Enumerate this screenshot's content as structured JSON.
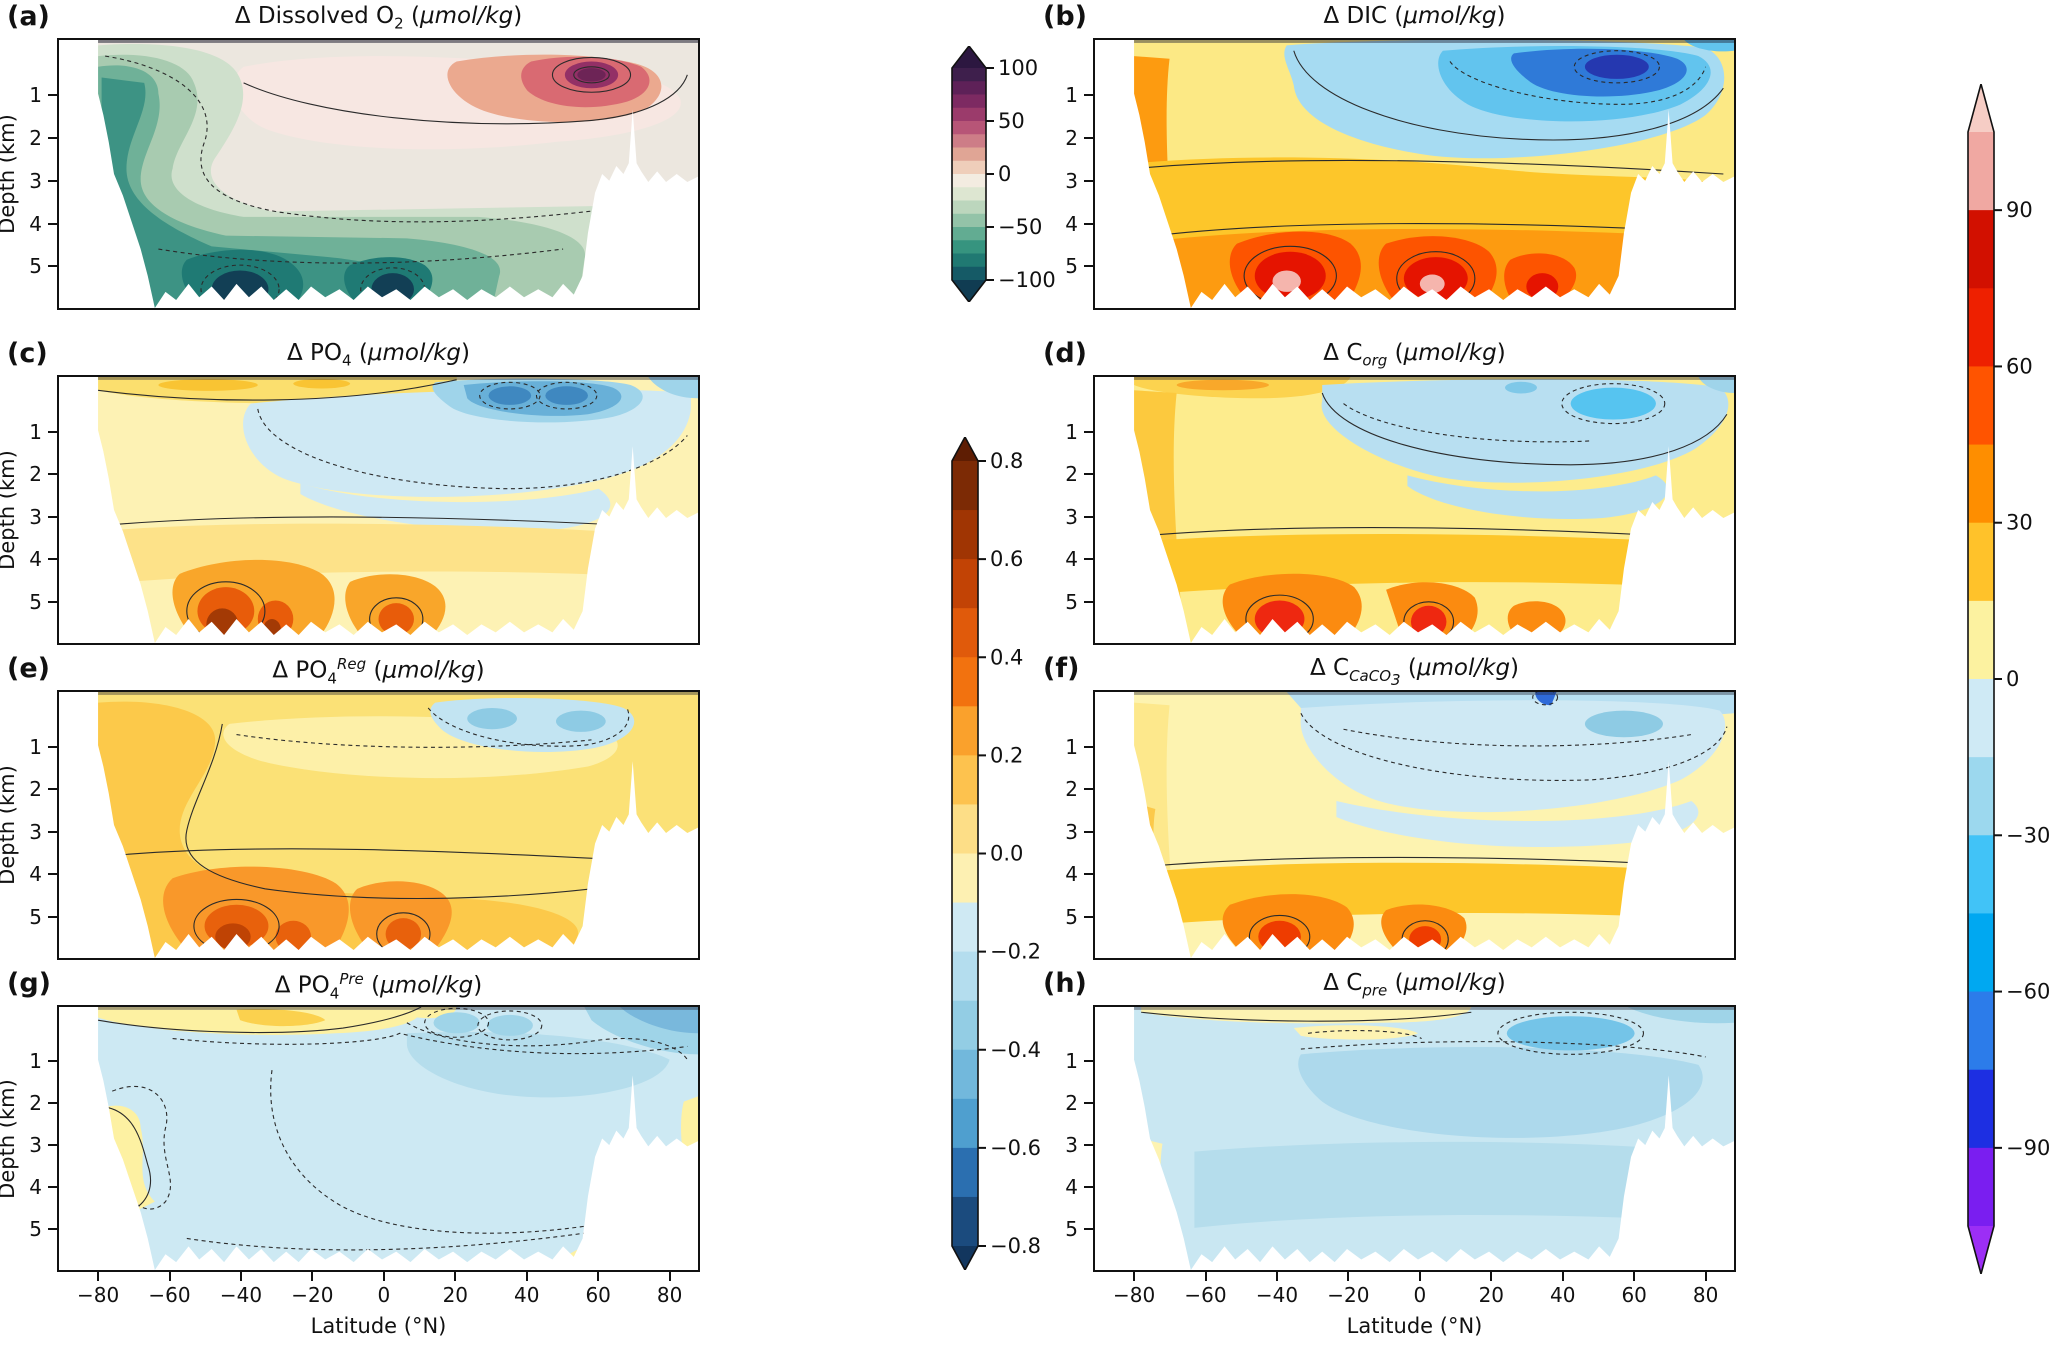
{
  "figure": {
    "background": "#ffffff"
  },
  "axes": {
    "x_label": "Latitude (°N)",
    "x_tick_values": [
      -80,
      -60,
      -40,
      -20,
      0,
      20,
      40,
      60,
      80
    ],
    "y_label": "Depth (km)",
    "y_ticks": [
      "1",
      "2",
      "3",
      "4",
      "5"
    ]
  },
  "panels": [
    {
      "letter": "(a)",
      "title_html": "Δ Dissolved O<sub>2</sub> (<i>μmol/kg</i>)"
    },
    {
      "letter": "(b)",
      "title_html": "Δ DIC (<i>μmol/kg</i>)"
    },
    {
      "letter": "(c)",
      "title_html": "Δ PO<sub>4</sub> (<i>μmol/kg</i>)"
    },
    {
      "letter": "(d)",
      "title_html": "Δ C<sub><i>org</i></sub> (<i>μmol/kg</i>)"
    },
    {
      "letter": "(e)",
      "title_html": "Δ PO<sub>4</sub><sup><i>Reg</i></sup> (<i>μmol/kg</i>)"
    },
    {
      "letter": "(f)",
      "title_html": "Δ C<sub><i>CaCO<sub>3</sub></i></sub> (<i>μmol/kg</i>)"
    },
    {
      "letter": "(g)",
      "title_html": "Δ PO<sub>4</sub><sup><i>Pre</i></sup> (<i>μmol/kg</i>)"
    },
    {
      "letter": "(h)",
      "title_html": "Δ C<sub><i>pre</i></sub> (<i>μmol/kg</i>)"
    }
  ],
  "colorbars": {
    "o2": {
      "range": [
        -100,
        100
      ],
      "tick_values": [
        100,
        50,
        0,
        -50,
        -100
      ],
      "decimals": 0,
      "arrow_top": "#2c1740",
      "arrow_bottom": "#103c52",
      "colors": [
        "#3e1f4c",
        "#5e2158",
        "#7d2a62",
        "#9b3b6b",
        "#b75577",
        "#cd7d87",
        "#e0a595",
        "#efceba",
        "#f3ece1",
        "#dde6d1",
        "#bcd6bd",
        "#93c3a8",
        "#62ac92",
        "#36947f",
        "#207972",
        "#155a66"
      ]
    },
    "po4": {
      "range": [
        -0.8,
        0.8
      ],
      "tick_values": [
        0.8,
        0.6,
        0.4,
        0.2,
        0.0,
        -0.2,
        -0.4,
        -0.6,
        -0.8
      ],
      "decimals": 1,
      "arrow_top": "#5e1d03",
      "arrow_bottom": "#12365e",
      "colors": [
        "#7c2a05",
        "#a03503",
        "#c24305",
        "#e05a0b",
        "#f2720f",
        "#faa12c",
        "#fdc24e",
        "#fdde87",
        "#fdf0b2",
        "#cfe9f3",
        "#b4ddee",
        "#93cde4",
        "#72b8dc",
        "#4f9fcf",
        "#2b6fb0",
        "#1b4b7e"
      ]
    },
    "carbon": {
      "range": [
        -105,
        105
      ],
      "tick_values": [
        90,
        60,
        30,
        0,
        -30,
        -60,
        -90
      ],
      "decimals": 0,
      "arrow_top": "#f6cdc5",
      "arrow_bottom": "#9c2ef5",
      "colors": [
        "#f0a8a2",
        "#d21000",
        "#ee2000",
        "#ff5400",
        "#fe8e00",
        "#ffc22a",
        "#fcf2a0",
        "#cfeaf5",
        "#9cd8ee",
        "#41c3f7",
        "#00a8f1",
        "#2c7cea",
        "#1d2fe2",
        "#7a1ef0"
      ]
    }
  },
  "chart_data": [
    {
      "panel": "a",
      "type": "heatmap",
      "variable": "Δ Dissolved O₂",
      "units": "μmol/kg",
      "x_axis": "Latitude (°N)",
      "x_range": [
        -90,
        90
      ],
      "y_axis": "Depth (km)",
      "y_range": [
        0,
        5.75
      ],
      "colorbar": "o2",
      "summary": [
        "Negative anomalies (−25 to −100) fill the Southern-Hemisphere upper ocean and the global deep ocean below ~3.5 km",
        "Strongest negative cores (≈ −100) at 4.5–5.5 km depth between 45°S and 5°N",
        "Positive plume (+25 to +100) at 30–60°N, 0.3–1.5 km, maximum ≈ +100 near 48°N at 0.8 km",
        "Near-zero band at 1–3 km between 20°S and 60°N"
      ]
    },
    {
      "panel": "b",
      "type": "heatmap",
      "variable": "Δ DIC",
      "units": "μmol/kg",
      "x_axis": "Latitude (°N)",
      "x_range": [
        -90,
        90
      ],
      "y_axis": "Depth (km)",
      "y_range": [
        0,
        5.75
      ],
      "colorbar": "carbon",
      "summary": [
        "Positive anomalies (+15 to +60) over most of the section, increasing with depth",
        "Deep maxima (+60 to >+90, locally >+105, pink cores) at 4–5.5 km between 45°S and 10°N",
        "Negative anomalies (−15 to −90) in the upper 3 km from 20°S to 60°N, strongest (≈ −90) at 30–50°N, 0.5–1 km",
        "Southern boundary column (~80°S) strongly positive"
      ]
    },
    {
      "panel": "c",
      "type": "heatmap",
      "variable": "Δ PO₄",
      "units": "μmol/kg",
      "x_axis": "Latitude (°N)",
      "x_range": [
        -90,
        90
      ],
      "y_axis": "Depth (km)",
      "y_range": [
        0,
        5.75
      ],
      "colorbar": "po4",
      "summary": [
        "Weak positive anomalies (+0.05 to +0.2) at the surface south of 0° and through mid-depths",
        "Negative anomalies (−0.1 to −0.6, dashed contours) in the 0.5–3 km layer from 20°S to 60°N, strongest at 25–55°N near 0.5–1 km",
        "Deep positive maxima (+0.4 to >+0.8) at 4.5–5.5 km near 35–20°S and ~0°"
      ]
    },
    {
      "panel": "d",
      "type": "heatmap",
      "variable": "Δ C (organic)",
      "units": "μmol/kg",
      "x_axis": "Latitude (°N)",
      "x_range": [
        -90,
        90
      ],
      "y_axis": "Depth (km)",
      "y_range": [
        0,
        5.75
      ],
      "colorbar": "carbon",
      "summary": [
        "Positive (+15 to +45) over most of the section",
        "Upper-ocean negatives (−15 to −45) from 10°S to 60°N above 2.5 km, local minimum near 45°N at 1 km (cyan core)",
        "Deep maxima (+45 to +75) at 4.5–5.5 km between 40°S and 10°N"
      ]
    },
    {
      "panel": "e",
      "type": "heatmap",
      "variable": "Δ PO₄ (regenerated)",
      "units": "μmol/kg",
      "x_axis": "Latitude (°N)",
      "x_range": [
        -90,
        90
      ],
      "y_axis": "Depth (km)",
      "y_range": [
        0,
        5.75
      ],
      "colorbar": "po4",
      "summary": [
        "Positive regenerated-PO₄ anomalies (+0.1 to +0.3) over most of the section",
        "Weak negative patch (−0.1 to −0.3) at 20–55°N, 0.3–1.5 km",
        "Deep maxima (+0.4 to +0.7) at 4.5–5.5 km between 40°S and 10°N"
      ]
    },
    {
      "panel": "f",
      "type": "heatmap",
      "variable": "Δ C (CaCO₃)",
      "units": "μmol/kg",
      "x_axis": "Latitude (°N)",
      "x_range": [
        -90,
        90
      ],
      "y_axis": "Depth (km)",
      "y_range": [
        0,
        5.75
      ],
      "colorbar": "carbon",
      "summary": [
        "Weakly positive (0 to +30) in surface and deep layers",
        "Weak negative layer (0 to −30) from 0.5–3 km north of 40°S",
        "Deep positive cores (+30 to +60) at 4.5–5.5 km, 40°S–10°N",
        "Narrow strong negative spike at ~35°N at the surface"
      ]
    },
    {
      "panel": "g",
      "type": "heatmap",
      "variable": "Δ PO₄ (preformed)",
      "units": "μmol/kg",
      "x_axis": "Latitude (°N)",
      "x_range": [
        -90,
        90
      ],
      "y_axis": "Depth (km)",
      "y_range": [
        0,
        5.75
      ],
      "colorbar": "po4",
      "summary": [
        "Weak negative preformed-PO₄ anomalies (0 to −0.2, dashed contours) across most of the section",
        "Stronger negative blobs (−0.2 to −0.3) at 10–40°N, 0.3–1 km and along the north-east boundary",
        "Weak positive band (0 to +0.15) at the surface south of 0°, near the sea floor at ~70°S and in the south-east/bottom-right corner"
      ]
    },
    {
      "panel": "h",
      "type": "heatmap",
      "variable": "Δ C (preformed)",
      "units": "μmol/kg",
      "x_axis": "Latitude (°N)",
      "x_range": [
        -90,
        90
      ],
      "y_axis": "Depth (km)",
      "y_range": [
        0,
        5.75
      ],
      "colorbar": "carbon",
      "summary": [
        "Weak negative preformed-carbon anomalies (0 to −30) over nearly the whole section",
        "Slightly stronger negative blob (≈ −30) at 20–45°N, 0.5–1.5 km",
        "Thin weakly positive (0 to +15) surface band from 75°S to 15°N"
      ]
    }
  ]
}
